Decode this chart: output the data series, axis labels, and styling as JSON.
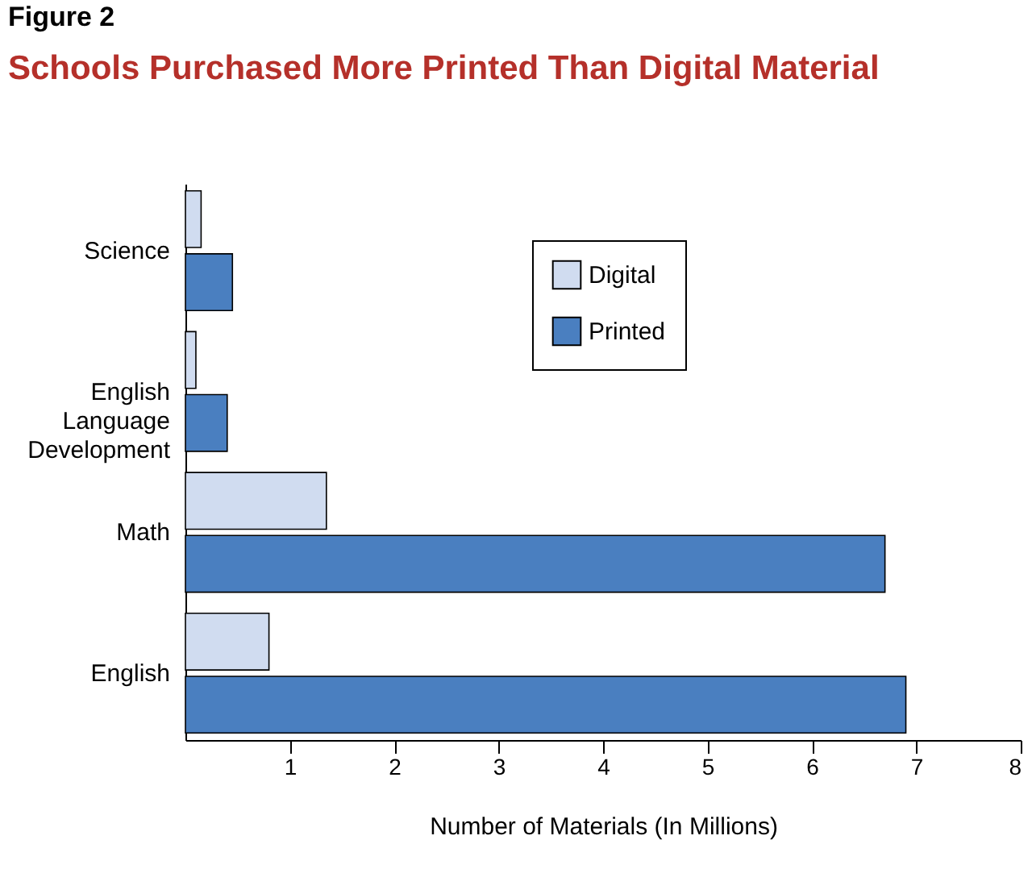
{
  "chart_data": {
    "type": "bar",
    "orientation": "horizontal",
    "title": "Schools Purchased More Printed Than Digital Material",
    "annotations": [
      "Figure 2"
    ],
    "xlabel": "Number of Materials (In Millions)",
    "categories": [
      "Science",
      "English Language Development",
      "Math",
      "English"
    ],
    "series": [
      {
        "name": "Digital",
        "color": "#d0dcf0",
        "values": [
          0.15,
          0.1,
          1.35,
          0.8
        ]
      },
      {
        "name": "Printed",
        "color": "#4a7fc0",
        "values": [
          0.45,
          0.4,
          6.7,
          6.9
        ]
      }
    ],
    "xlim": [
      0,
      8
    ],
    "xticks": [
      1,
      2,
      3,
      4,
      5,
      6,
      7,
      8
    ],
    "grid": false,
    "legend": "top right"
  }
}
